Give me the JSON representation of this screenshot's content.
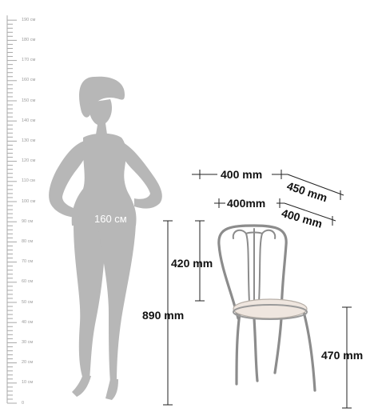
{
  "ruler": {
    "ticks": [
      "0",
      "10 см",
      "20 см",
      "30 см",
      "40 см",
      "50 см",
      "60 см",
      "70 см",
      "80 см",
      "90 см",
      "100 см",
      "110 см",
      "120 см",
      "130 см",
      "140 см",
      "150 см",
      "160 см",
      "170 см",
      "180 см",
      "190 см"
    ]
  },
  "figure": {
    "label": "160 см"
  },
  "dimensions": {
    "back_width": "400 mm",
    "back_depth": "450 mm",
    "seat_width": "400mm",
    "seat_depth": "400 mm",
    "back_height": "420 mm",
    "total_height": "890 mm",
    "seat_height": "470 mm"
  },
  "colors": {
    "silhouette": "#b7b7b7",
    "chrome": "#8c8c8c",
    "seat": "#efe6df",
    "line": "#222222",
    "ruler": "#a8a8a8"
  }
}
